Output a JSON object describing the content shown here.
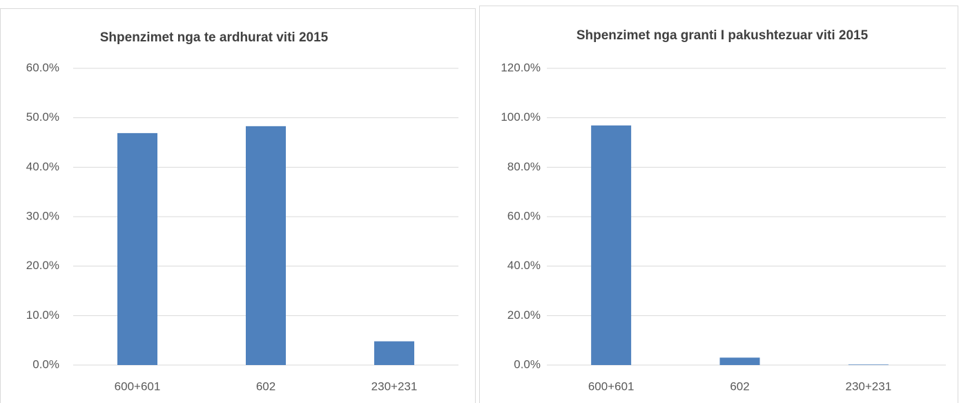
{
  "chart_data": [
    {
      "type": "bar",
      "title": "Shpenzimet nga te ardhurat viti 2015",
      "categories": [
        "600+601",
        "602",
        "230+231"
      ],
      "values": [
        46.9,
        48.3,
        4.8
      ],
      "color": "#4f81bd",
      "ylim": [
        0,
        60
      ],
      "yticks": [
        {
          "value": 0,
          "label": "0.0%"
        },
        {
          "value": 10,
          "label": "10.0%"
        },
        {
          "value": 20,
          "label": "20.0%"
        },
        {
          "value": 30,
          "label": "30.0%"
        },
        {
          "value": 40,
          "label": "40.0%"
        },
        {
          "value": 50,
          "label": "50.0%"
        },
        {
          "value": 60,
          "label": "60.0%"
        }
      ],
      "grid": true
    },
    {
      "type": "bar",
      "title": "Shpenzimet nga granti I pakushtezuar viti 2015",
      "categories": [
        "600+601",
        "602",
        "230+231"
      ],
      "values": [
        96.9,
        3.0,
        0.2
      ],
      "color": "#4f81bd",
      "ylim": [
        0,
        120
      ],
      "yticks": [
        {
          "value": 0,
          "label": "0.0%"
        },
        {
          "value": 20,
          "label": "20.0%"
        },
        {
          "value": 40,
          "label": "40.0%"
        },
        {
          "value": 60,
          "label": "60.0%"
        },
        {
          "value": 80,
          "label": "80.0%"
        },
        {
          "value": 100,
          "label": "100.0%"
        },
        {
          "value": 120,
          "label": "120.0%"
        }
      ],
      "grid": true
    }
  ]
}
